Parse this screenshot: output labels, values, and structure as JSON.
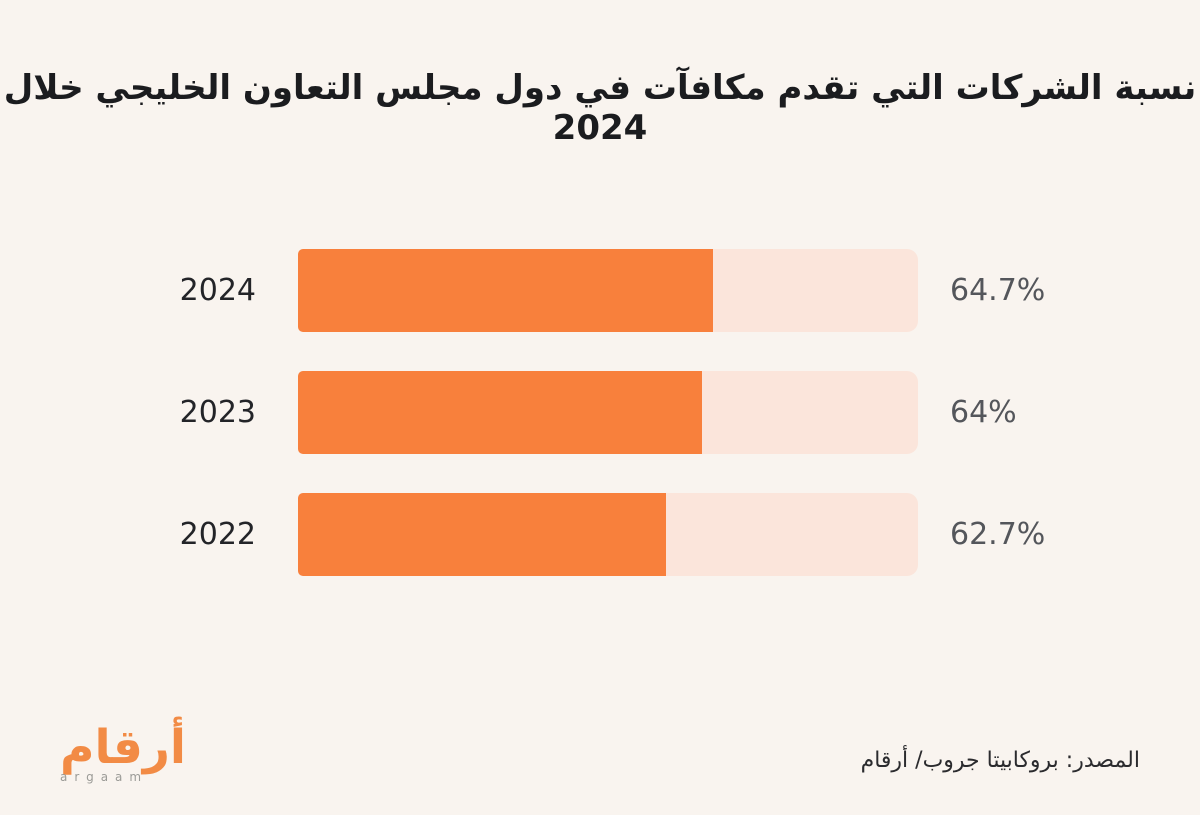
{
  "title": "نسبة الشركات التي تقدم مكافآت في دول مجلس التعاون الخليجي خلال 2024",
  "chart_data": {
    "type": "bar",
    "orientation": "horizontal",
    "title": "نسبة الشركات التي تقدم مكافآت في دول مجلس التعاون الخليجي خلال 2024",
    "categories": [
      "2024",
      "2023",
      "2022"
    ],
    "values": [
      64.7,
      64,
      62.7
    ],
    "value_labels": [
      "64.7%",
      "64%",
      "62.7%"
    ],
    "fill_fractions_pct": [
      66.9,
      65.2,
      59.4
    ],
    "xlim": [
      0,
      100
    ],
    "grid": "off",
    "legend": "none"
  },
  "colors": {
    "background": "#F9F4EF",
    "bar": "#F8803C",
    "track": "#FBE5DB",
    "title_text": "#1b1c1f",
    "year_text": "#232428",
    "value_text": "#54565B",
    "logo_orange": "#F28B45",
    "logo_gray": "#9b9b97",
    "source_text": "#2b2b2e"
  },
  "footer": {
    "source": "المصدر: بروكابيتا جروب/ أرقام",
    "logo_arabic": "أرقام",
    "logo_latin": "argaam"
  }
}
